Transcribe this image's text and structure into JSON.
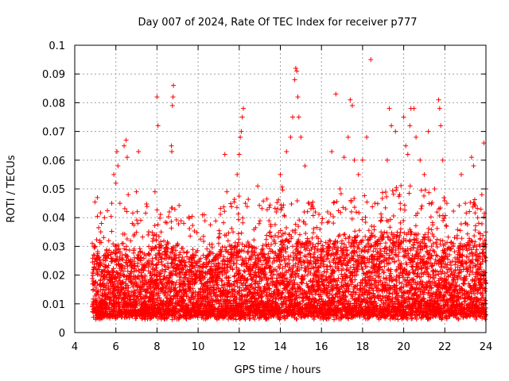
{
  "chart_data": {
    "type": "scatter",
    "title": "Day 007 of 2024, Rate Of TEC Index for receiver p777",
    "xlabel": "GPS time / hours",
    "ylabel": "ROTI / TECUs",
    "xlim": [
      4,
      24
    ],
    "ylim": [
      0,
      0.1
    ],
    "xticks": [
      4,
      6,
      8,
      10,
      12,
      14,
      16,
      18,
      20,
      22,
      24
    ],
    "yticks": [
      0,
      0.01,
      0.02,
      0.03,
      0.04,
      0.05,
      0.06,
      0.07,
      0.08,
      0.09,
      0.1
    ],
    "grid": true,
    "marker": "+",
    "color": "#ff0000",
    "series": [
      {
        "points": [
          [
            4.9,
            0.015
          ],
          [
            5.0,
            0.03
          ],
          [
            5.1,
            0.047
          ],
          [
            5.2,
            0.012
          ],
          [
            5.3,
            0.038
          ],
          [
            5.5,
            0.025
          ],
          [
            5.7,
            0.018
          ],
          [
            5.8,
            0.045
          ],
          [
            5.9,
            0.055
          ],
          [
            6.0,
            0.052
          ],
          [
            6.05,
            0.063
          ],
          [
            6.1,
            0.058
          ],
          [
            6.2,
            0.045
          ],
          [
            6.3,
            0.031
          ],
          [
            6.4,
            0.065
          ],
          [
            6.5,
            0.067
          ],
          [
            6.55,
            0.061
          ],
          [
            6.6,
            0.048
          ],
          [
            6.8,
            0.038
          ],
          [
            7.0,
            0.049
          ],
          [
            7.1,
            0.063
          ],
          [
            7.2,
            0.025
          ],
          [
            7.4,
            0.018
          ],
          [
            7.6,
            0.03
          ],
          [
            7.8,
            0.022
          ],
          [
            7.9,
            0.049
          ],
          [
            8.0,
            0.082
          ],
          [
            8.05,
            0.072
          ],
          [
            8.2,
            0.035
          ],
          [
            8.4,
            0.028
          ],
          [
            8.6,
            0.042
          ],
          [
            8.7,
            0.065
          ],
          [
            8.72,
            0.063
          ],
          [
            8.75,
            0.079
          ],
          [
            8.78,
            0.082
          ],
          [
            8.8,
            0.086
          ],
          [
            9.0,
            0.031
          ],
          [
            9.3,
            0.025
          ],
          [
            9.6,
            0.02
          ],
          [
            9.9,
            0.028
          ],
          [
            10.3,
            0.041
          ],
          [
            10.6,
            0.022
          ],
          [
            11.0,
            0.031
          ],
          [
            11.3,
            0.062
          ],
          [
            11.4,
            0.049
          ],
          [
            11.7,
            0.035
          ],
          [
            11.9,
            0.055
          ],
          [
            12.0,
            0.062
          ],
          [
            12.05,
            0.068
          ],
          [
            12.1,
            0.07
          ],
          [
            12.15,
            0.075
          ],
          [
            12.2,
            0.078
          ],
          [
            12.3,
            0.045
          ],
          [
            12.6,
            0.03
          ],
          [
            12.9,
            0.051
          ],
          [
            13.2,
            0.025
          ],
          [
            13.5,
            0.035
          ],
          [
            13.8,
            0.042
          ],
          [
            14.0,
            0.055
          ],
          [
            14.3,
            0.063
          ],
          [
            14.5,
            0.068
          ],
          [
            14.6,
            0.075
          ],
          [
            14.7,
            0.088
          ],
          [
            14.75,
            0.092
          ],
          [
            14.8,
            0.091
          ],
          [
            14.85,
            0.082
          ],
          [
            14.9,
            0.075
          ],
          [
            15.0,
            0.068
          ],
          [
            15.2,
            0.058
          ],
          [
            15.4,
            0.045
          ],
          [
            15.7,
            0.03
          ],
          [
            16.0,
            0.025
          ],
          [
            16.3,
            0.042
          ],
          [
            16.5,
            0.063
          ],
          [
            16.7,
            0.083
          ],
          [
            16.9,
            0.05
          ],
          [
            17.1,
            0.061
          ],
          [
            17.3,
            0.068
          ],
          [
            17.4,
            0.081
          ],
          [
            17.5,
            0.079
          ],
          [
            17.6,
            0.06
          ],
          [
            17.8,
            0.055
          ],
          [
            18.0,
            0.06
          ],
          [
            18.2,
            0.068
          ],
          [
            18.4,
            0.095
          ],
          [
            18.6,
            0.045
          ],
          [
            18.9,
            0.035
          ],
          [
            19.2,
            0.06
          ],
          [
            19.3,
            0.078
          ],
          [
            19.4,
            0.072
          ],
          [
            19.6,
            0.07
          ],
          [
            19.8,
            0.048
          ],
          [
            20.0,
            0.075
          ],
          [
            20.1,
            0.065
          ],
          [
            20.2,
            0.062
          ],
          [
            20.3,
            0.072
          ],
          [
            20.35,
            0.078
          ],
          [
            20.5,
            0.078
          ],
          [
            20.6,
            0.068
          ],
          [
            20.8,
            0.06
          ],
          [
            21.0,
            0.055
          ],
          [
            21.2,
            0.07
          ],
          [
            21.5,
            0.05
          ],
          [
            21.7,
            0.081
          ],
          [
            21.75,
            0.078
          ],
          [
            21.8,
            0.072
          ],
          [
            21.9,
            0.06
          ],
          [
            22.1,
            0.045
          ],
          [
            22.4,
            0.03
          ],
          [
            22.8,
            0.055
          ],
          [
            23.0,
            0.045
          ],
          [
            23.3,
            0.061
          ],
          [
            23.4,
            0.058
          ],
          [
            23.6,
            0.04
          ],
          [
            23.8,
            0.048
          ],
          [
            23.9,
            0.066
          ],
          [
            24.0,
            0.05
          ],
          [
            24.0,
            0.035
          ]
        ],
        "density_profile": [
          [
            5,
            0.027
          ],
          [
            6,
            0.03
          ],
          [
            7,
            0.028
          ],
          [
            8,
            0.032
          ],
          [
            9,
            0.03
          ],
          [
            10,
            0.026
          ],
          [
            11,
            0.028
          ],
          [
            12,
            0.033
          ],
          [
            13,
            0.03
          ],
          [
            14,
            0.036
          ],
          [
            15,
            0.034
          ],
          [
            16,
            0.03
          ],
          [
            17,
            0.034
          ],
          [
            18,
            0.033
          ],
          [
            19,
            0.034
          ],
          [
            20,
            0.037
          ],
          [
            21,
            0.035
          ],
          [
            22,
            0.032
          ],
          [
            23,
            0.033
          ],
          [
            24,
            0.032
          ]
        ]
      }
    ]
  }
}
